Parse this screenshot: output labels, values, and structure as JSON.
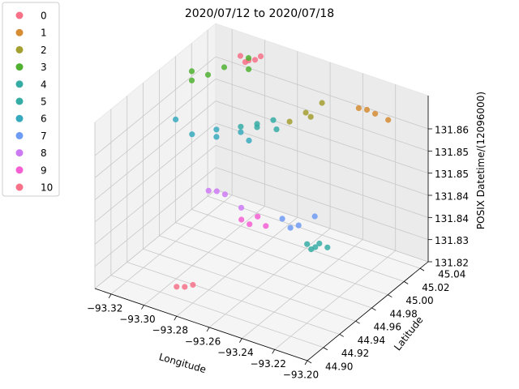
{
  "chart_data": {
    "type": "scatter",
    "projection": "3d",
    "title": "2020/07/12 to 2020/07/18",
    "xlabel": "Longitude",
    "ylabel": "Latitude",
    "zlabel": "POSIX Datetime/(12096000)",
    "xlim": [
      -93.33,
      -93.2
    ],
    "ylim": [
      44.9,
      45.05
    ],
    "zlim": [
      131.82,
      131.865
    ],
    "xticks": [
      -93.32,
      -93.3,
      -93.28,
      -93.26,
      -93.24,
      -93.22,
      -93.2
    ],
    "xtick_labels": [
      "−93.32",
      "−93.30",
      "−93.28",
      "−93.26",
      "−93.24",
      "−93.22",
      "−93.20"
    ],
    "yticks": [
      44.9,
      44.92,
      44.94,
      44.96,
      44.98,
      45.0,
      45.02,
      45.04
    ],
    "ytick_labels": [
      "44.90",
      "44.92",
      "44.94",
      "44.96",
      "44.98",
      "45.00",
      "45.02",
      "45.04"
    ],
    "zticks": [
      131.82,
      131.826,
      131.832,
      131.838,
      131.844,
      131.85,
      131.856
    ],
    "ztick_labels": [
      "131.82",
      "131.83",
      "131.84",
      "131.84",
      "131.85",
      "131.85",
      "131.86"
    ],
    "grid": true,
    "legend_position": "outside-top-left",
    "series": [
      {
        "name": "0",
        "color": "#f77189",
        "points": [
          [
            -93.31,
            45.04,
            131.861
          ],
          [
            -93.305,
            45.04,
            131.8605
          ],
          [
            -93.3,
            45.045,
            131.8615
          ],
          [
            -93.307,
            45.04,
            131.8598
          ],
          [
            -93.302,
            45.042,
            131.8608
          ]
        ]
      },
      {
        "name": "1",
        "color": "#d58c32",
        "points": [
          [
            -93.24,
            45.045,
            131.8565
          ],
          [
            -93.235,
            45.045,
            131.8568
          ],
          [
            -93.23,
            45.045,
            131.8565
          ],
          [
            -93.222,
            45.045,
            131.856
          ]
        ]
      },
      {
        "name": "2",
        "color": "#a4a031",
        "points": [
          [
            -93.27,
            45.02,
            131.8528
          ],
          [
            -93.265,
            45.03,
            131.8542
          ],
          [
            -93.26,
            45.04,
            131.8558
          ],
          [
            -93.262,
            45.03,
            131.8535
          ]
        ]
      },
      {
        "name": "3",
        "color": "#50b131",
        "points": [
          [
            -93.32,
            45.0,
            131.8625
          ],
          [
            -93.315,
            45.01,
            131.8605
          ],
          [
            -93.31,
            45.02,
            131.8615
          ],
          [
            -93.3,
            45.03,
            131.8607
          ],
          [
            -93.32,
            45.0,
            131.86
          ],
          [
            -93.305,
            45.04,
            131.8612
          ]
        ]
      },
      {
        "name": "4",
        "color": "#36ada4",
        "points": [
          [
            -93.29,
            45.0,
            131.852
          ],
          [
            -93.285,
            45.01,
            131.8517
          ],
          [
            -93.28,
            45.02,
            131.8517
          ],
          [
            -93.285,
            45.01,
            131.8508
          ],
          [
            -93.278,
            45.02,
            131.8495
          ]
        ]
      },
      {
        "name": "5",
        "color": "#36ada4",
        "points": [
          [
            -93.21,
            44.92,
            131.8465
          ],
          [
            -93.205,
            44.92,
            131.8464
          ],
          [
            -93.205,
            44.925,
            131.8465
          ],
          [
            -93.2,
            44.925,
            131.8462
          ],
          [
            -93.21,
            44.925,
            131.8442
          ]
        ]
      },
      {
        "name": "6",
        "color": "#38aabe",
        "points": [
          [
            -93.32,
            44.98,
            131.853
          ],
          [
            -93.31,
            44.98,
            131.8505
          ],
          [
            -93.3,
            44.99,
            131.8515
          ],
          [
            -93.29,
            45.0,
            131.8505
          ],
          [
            -93.3,
            44.99,
            131.8495
          ],
          [
            -93.285,
            45.0,
            131.849
          ]
        ]
      },
      {
        "name": "7",
        "color": "#6e9bf4",
        "points": [
          [
            -93.24,
            44.95,
            131.8435
          ],
          [
            -93.23,
            44.95,
            131.8432
          ],
          [
            -93.225,
            44.96,
            131.8446
          ],
          [
            -93.235,
            44.95,
            131.8418
          ]
        ]
      },
      {
        "name": "8",
        "color": "#cc7af4",
        "points": [
          [
            -93.29,
            44.96,
            131.8418
          ],
          [
            -93.285,
            44.96,
            131.8424
          ],
          [
            -93.28,
            44.96,
            131.8423
          ],
          [
            -93.27,
            44.96,
            131.8402
          ]
        ]
      },
      {
        "name": "9",
        "color": "#f45fd2",
        "points": [
          [
            -93.265,
            44.95,
            131.8395
          ],
          [
            -93.26,
            44.95,
            131.839
          ],
          [
            -93.26,
            44.96,
            131.8393
          ],
          [
            -93.255,
            44.96,
            131.8375
          ]
        ]
      },
      {
        "name": "10",
        "color": "#f77189",
        "points": [
          [
            -93.27,
            44.9,
            131.83
          ],
          [
            -93.275,
            44.9,
            131.8287
          ],
          [
            -93.28,
            44.9,
            131.828
          ]
        ]
      }
    ]
  }
}
